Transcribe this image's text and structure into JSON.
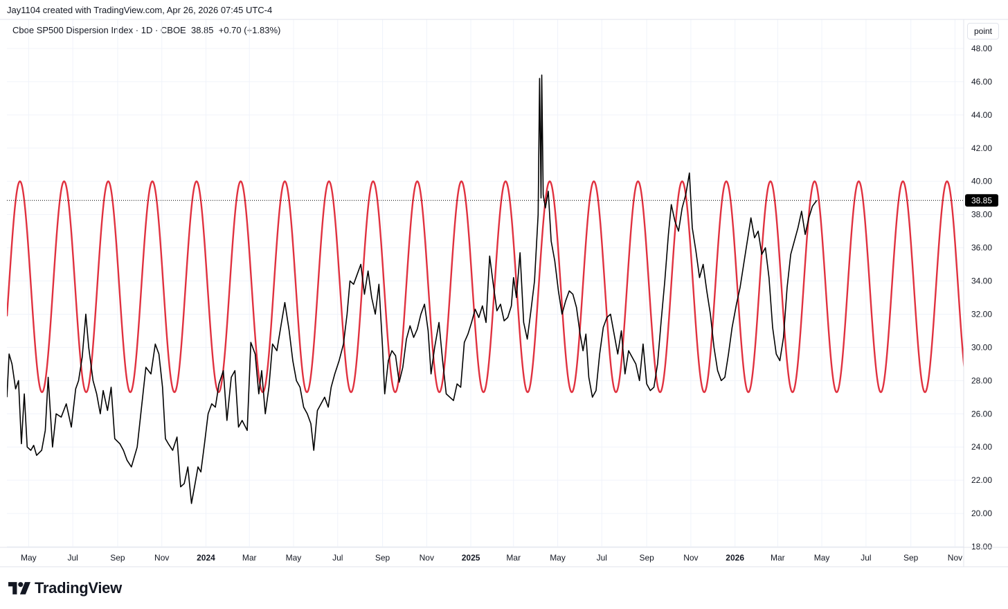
{
  "header": {
    "credit": "Jay1104 created with TradingView.com, Apr 26, 2026 07:45 UTC-4"
  },
  "legend": {
    "symbol": "Cboe SP500 Dispersion Index · 1D · CBOE",
    "last": "38.85",
    "change": "+0.70 (+1.83%)"
  },
  "price_axis": {
    "unit": "point",
    "last_price_label": "38.85"
  },
  "footer": {
    "brand": "TradingView"
  },
  "colors": {
    "price_line": "#000000",
    "cycle_line": "#e0313f",
    "last_badge_bg": "#000000",
    "grid": "#f0f3fa"
  },
  "chart_data": {
    "type": "line",
    "title": "Cboe SP500 Dispersion Index · 1D · CBOE",
    "ylabel": "point",
    "ylim": [
      18,
      48.5
    ],
    "y_ticks": [
      "18.00",
      "20.00",
      "22.00",
      "24.00",
      "26.00",
      "28.00",
      "30.00",
      "32.00",
      "34.00",
      "36.00",
      "38.00",
      "40.00",
      "42.00",
      "44.00",
      "46.00",
      "48.00"
    ],
    "xlim": [
      "2023-04-01",
      "2026-11-13"
    ],
    "x_ticks": [
      {
        "date": "2023-05-01",
        "label": "May",
        "bold": false
      },
      {
        "date": "2023-07-01",
        "label": "Jul",
        "bold": false
      },
      {
        "date": "2023-09-01",
        "label": "Sep",
        "bold": false
      },
      {
        "date": "2023-11-01",
        "label": "Nov",
        "bold": false
      },
      {
        "date": "2024-01-01",
        "label": "2024",
        "bold": true
      },
      {
        "date": "2024-03-01",
        "label": "Mar",
        "bold": false
      },
      {
        "date": "2024-05-01",
        "label": "May",
        "bold": false
      },
      {
        "date": "2024-07-01",
        "label": "Jul",
        "bold": false
      },
      {
        "date": "2024-09-01",
        "label": "Sep",
        "bold": false
      },
      {
        "date": "2024-11-01",
        "label": "Nov",
        "bold": false
      },
      {
        "date": "2025-01-01",
        "label": "2025",
        "bold": true
      },
      {
        "date": "2025-03-01",
        "label": "Mar",
        "bold": false
      },
      {
        "date": "2025-05-01",
        "label": "May",
        "bold": false
      },
      {
        "date": "2025-07-01",
        "label": "Jul",
        "bold": false
      },
      {
        "date": "2025-09-01",
        "label": "Sep",
        "bold": false
      },
      {
        "date": "2025-11-01",
        "label": "Nov",
        "bold": false
      },
      {
        "date": "2026-01-01",
        "label": "2026",
        "bold": true
      },
      {
        "date": "2026-03-01",
        "label": "Mar",
        "bold": false
      },
      {
        "date": "2026-05-01",
        "label": "May",
        "bold": false
      },
      {
        "date": "2026-07-01",
        "label": "Jul",
        "bold": false
      },
      {
        "date": "2026-09-01",
        "label": "Sep",
        "bold": false
      },
      {
        "date": "2026-11-01",
        "label": "Nov",
        "bold": false
      }
    ],
    "last_value": 38.85,
    "grid": true,
    "series": [
      {
        "values": [
          [
            "2023-04-01",
            27.0
          ],
          [
            "2023-04-04",
            29.6
          ],
          [
            "2023-04-08",
            29.0
          ],
          [
            "2023-04-13",
            27.5
          ],
          [
            "2023-04-17",
            28.0
          ],
          [
            "2023-04-21",
            24.2
          ],
          [
            "2023-04-25",
            27.2
          ],
          [
            "2023-04-29",
            24.0
          ],
          [
            "2023-05-04",
            23.8
          ],
          [
            "2023-05-08",
            24.1
          ],
          [
            "2023-05-12",
            23.5
          ],
          [
            "2023-05-19",
            23.8
          ],
          [
            "2023-05-24",
            25.0
          ],
          [
            "2023-05-28",
            28.2
          ],
          [
            "2023-06-03",
            24.0
          ],
          [
            "2023-06-08",
            26.0
          ],
          [
            "2023-06-15",
            25.8
          ],
          [
            "2023-06-22",
            26.6
          ],
          [
            "2023-06-29",
            25.2
          ],
          [
            "2023-07-05",
            27.5
          ],
          [
            "2023-07-09",
            28.0
          ],
          [
            "2023-07-14",
            29.4
          ],
          [
            "2023-07-19",
            32.0
          ],
          [
            "2023-07-23",
            30.0
          ],
          [
            "2023-07-29",
            28.0
          ],
          [
            "2023-08-03",
            27.2
          ],
          [
            "2023-08-08",
            26.0
          ],
          [
            "2023-08-12",
            27.4
          ],
          [
            "2023-08-18",
            26.2
          ],
          [
            "2023-08-23",
            27.6
          ],
          [
            "2023-08-28",
            24.5
          ],
          [
            "2023-09-04",
            24.2
          ],
          [
            "2023-09-09",
            23.8
          ],
          [
            "2023-09-14",
            23.2
          ],
          [
            "2023-09-20",
            22.8
          ],
          [
            "2023-09-28",
            24.0
          ],
          [
            "2023-10-03",
            26.0
          ],
          [
            "2023-10-10",
            28.8
          ],
          [
            "2023-10-17",
            28.4
          ],
          [
            "2023-10-23",
            30.2
          ],
          [
            "2023-10-28",
            29.6
          ],
          [
            "2023-11-02",
            27.6
          ],
          [
            "2023-11-06",
            24.5
          ],
          [
            "2023-11-10",
            24.2
          ],
          [
            "2023-11-16",
            23.8
          ],
          [
            "2023-11-22",
            24.6
          ],
          [
            "2023-11-27",
            21.6
          ],
          [
            "2023-12-02",
            21.8
          ],
          [
            "2023-12-07",
            22.8
          ],
          [
            "2023-12-12",
            20.6
          ],
          [
            "2023-12-17",
            21.8
          ],
          [
            "2023-12-21",
            22.8
          ],
          [
            "2023-12-25",
            22.5
          ],
          [
            "2023-12-30",
            24.2
          ],
          [
            "2024-01-04",
            26.0
          ],
          [
            "2024-01-09",
            26.6
          ],
          [
            "2024-01-14",
            26.4
          ],
          [
            "2024-01-19",
            27.8
          ],
          [
            "2024-01-25",
            28.6
          ],
          [
            "2024-01-30",
            25.6
          ],
          [
            "2024-02-05",
            28.2
          ],
          [
            "2024-02-10",
            28.6
          ],
          [
            "2024-02-15",
            25.2
          ],
          [
            "2024-02-20",
            25.6
          ],
          [
            "2024-02-27",
            25.0
          ],
          [
            "2024-03-03",
            30.3
          ],
          [
            "2024-03-09",
            29.6
          ],
          [
            "2024-03-14",
            27.2
          ],
          [
            "2024-03-18",
            28.6
          ],
          [
            "2024-03-23",
            26.0
          ],
          [
            "2024-03-28",
            27.6
          ],
          [
            "2024-04-02",
            30.2
          ],
          [
            "2024-04-08",
            29.8
          ],
          [
            "2024-04-14",
            31.4
          ],
          [
            "2024-04-19",
            32.7
          ],
          [
            "2024-04-25",
            31.0
          ],
          [
            "2024-04-30",
            29.2
          ],
          [
            "2024-05-05",
            28.0
          ],
          [
            "2024-05-10",
            27.6
          ],
          [
            "2024-05-15",
            26.4
          ],
          [
            "2024-05-20",
            26.0
          ],
          [
            "2024-05-25",
            25.4
          ],
          [
            "2024-05-29",
            23.8
          ],
          [
            "2024-06-03",
            26.2
          ],
          [
            "2024-06-08",
            26.6
          ],
          [
            "2024-06-13",
            27.0
          ],
          [
            "2024-06-18",
            26.4
          ],
          [
            "2024-06-22",
            27.6
          ],
          [
            "2024-06-27",
            28.4
          ],
          [
            "2024-07-03",
            29.2
          ],
          [
            "2024-07-09",
            30.2
          ],
          [
            "2024-07-14",
            32.0
          ],
          [
            "2024-07-18",
            34.0
          ],
          [
            "2024-07-23",
            33.8
          ],
          [
            "2024-07-28",
            34.4
          ],
          [
            "2024-08-02",
            35.0
          ],
          [
            "2024-08-07",
            33.2
          ],
          [
            "2024-08-12",
            34.6
          ],
          [
            "2024-08-17",
            33.0
          ],
          [
            "2024-08-22",
            32.0
          ],
          [
            "2024-08-27",
            33.8
          ],
          [
            "2024-09-01",
            30.0
          ],
          [
            "2024-09-04",
            27.2
          ],
          [
            "2024-09-09",
            29.2
          ],
          [
            "2024-09-14",
            29.8
          ],
          [
            "2024-09-19",
            29.5
          ],
          [
            "2024-09-24",
            27.9
          ],
          [
            "2024-09-29",
            28.8
          ],
          [
            "2024-10-04",
            30.5
          ],
          [
            "2024-10-09",
            31.3
          ],
          [
            "2024-10-14",
            30.6
          ],
          [
            "2024-10-19",
            31.1
          ],
          [
            "2024-10-24",
            32.0
          ],
          [
            "2024-10-29",
            32.6
          ],
          [
            "2024-11-03",
            31.0
          ],
          [
            "2024-11-07",
            28.4
          ],
          [
            "2024-11-12",
            30.0
          ],
          [
            "2024-11-18",
            31.5
          ],
          [
            "2024-11-23",
            29.2
          ],
          [
            "2024-11-28",
            27.2
          ],
          [
            "2024-12-03",
            27.0
          ],
          [
            "2024-12-08",
            26.8
          ],
          [
            "2024-12-13",
            27.8
          ],
          [
            "2024-12-18",
            27.6
          ],
          [
            "2024-12-23",
            30.3
          ],
          [
            "2024-12-28",
            30.8
          ],
          [
            "2025-01-02",
            31.5
          ],
          [
            "2025-01-07",
            32.3
          ],
          [
            "2025-01-12",
            31.8
          ],
          [
            "2025-01-17",
            32.5
          ],
          [
            "2025-01-22",
            31.5
          ],
          [
            "2025-01-27",
            35.5
          ],
          [
            "2025-02-01",
            33.8
          ],
          [
            "2025-02-06",
            32.2
          ],
          [
            "2025-02-11",
            32.6
          ],
          [
            "2025-02-16",
            31.6
          ],
          [
            "2025-02-21",
            31.8
          ],
          [
            "2025-02-26",
            32.5
          ],
          [
            "2025-03-01",
            34.2
          ],
          [
            "2025-03-05",
            33.0
          ],
          [
            "2025-03-10",
            35.7
          ],
          [
            "2025-03-15",
            31.5
          ],
          [
            "2025-03-20",
            30.5
          ],
          [
            "2025-03-25",
            32.2
          ],
          [
            "2025-03-30",
            34.0
          ],
          [
            "2025-04-04",
            38.0
          ],
          [
            "2025-04-06",
            46.2
          ],
          [
            "2025-04-08",
            39.0
          ],
          [
            "2025-04-09",
            46.4
          ],
          [
            "2025-04-11",
            39.2
          ],
          [
            "2025-04-14",
            38.4
          ],
          [
            "2025-04-18",
            39.4
          ],
          [
            "2025-04-22",
            36.4
          ],
          [
            "2025-04-27",
            35.2
          ],
          [
            "2025-05-02",
            33.4
          ],
          [
            "2025-05-07",
            32.0
          ],
          [
            "2025-05-12",
            32.8
          ],
          [
            "2025-05-17",
            33.4
          ],
          [
            "2025-05-22",
            33.2
          ],
          [
            "2025-05-27",
            32.4
          ],
          [
            "2025-06-01",
            30.8
          ],
          [
            "2025-06-05",
            29.8
          ],
          [
            "2025-06-09",
            30.8
          ],
          [
            "2025-06-13",
            28.2
          ],
          [
            "2025-06-18",
            27.0
          ],
          [
            "2025-06-23",
            27.4
          ],
          [
            "2025-06-28",
            29.6
          ],
          [
            "2025-07-03",
            31.2
          ],
          [
            "2025-07-08",
            31.8
          ],
          [
            "2025-07-13",
            32.0
          ],
          [
            "2025-07-18",
            30.8
          ],
          [
            "2025-07-23",
            29.6
          ],
          [
            "2025-07-28",
            31.0
          ],
          [
            "2025-08-02",
            28.4
          ],
          [
            "2025-08-07",
            29.8
          ],
          [
            "2025-08-12",
            29.4
          ],
          [
            "2025-08-17",
            29.0
          ],
          [
            "2025-08-22",
            28.0
          ],
          [
            "2025-08-27",
            30.2
          ],
          [
            "2025-09-01",
            27.8
          ],
          [
            "2025-09-06",
            27.4
          ],
          [
            "2025-09-11",
            27.6
          ],
          [
            "2025-09-16",
            29.0
          ],
          [
            "2025-09-21",
            31.6
          ],
          [
            "2025-09-26",
            34.0
          ],
          [
            "2025-10-01",
            36.8
          ],
          [
            "2025-10-05",
            38.6
          ],
          [
            "2025-10-10",
            37.6
          ],
          [
            "2025-10-15",
            37.0
          ],
          [
            "2025-10-20",
            38.4
          ],
          [
            "2025-10-25",
            39.2
          ],
          [
            "2025-10-30",
            40.5
          ],
          [
            "2025-11-03",
            37.2
          ],
          [
            "2025-11-08",
            35.8
          ],
          [
            "2025-11-13",
            34.2
          ],
          [
            "2025-11-18",
            35.0
          ],
          [
            "2025-11-23",
            33.4
          ],
          [
            "2025-11-28",
            32.0
          ],
          [
            "2025-12-03",
            30.0
          ],
          [
            "2025-12-08",
            28.6
          ],
          [
            "2025-12-13",
            28.0
          ],
          [
            "2025-12-18",
            28.2
          ],
          [
            "2025-12-23",
            29.6
          ],
          [
            "2025-12-28",
            31.2
          ],
          [
            "2026-01-03",
            32.6
          ],
          [
            "2026-01-08",
            33.6
          ],
          [
            "2026-01-13",
            35.0
          ],
          [
            "2026-01-18",
            36.4
          ],
          [
            "2026-01-23",
            37.8
          ],
          [
            "2026-01-28",
            36.6
          ],
          [
            "2026-02-02",
            37.0
          ],
          [
            "2026-02-07",
            35.6
          ],
          [
            "2026-02-12",
            36.0
          ],
          [
            "2026-02-17",
            34.2
          ],
          [
            "2026-02-22",
            31.2
          ],
          [
            "2026-02-27",
            29.6
          ],
          [
            "2026-03-04",
            29.2
          ],
          [
            "2026-03-09",
            30.6
          ],
          [
            "2026-03-14",
            33.6
          ],
          [
            "2026-03-19",
            35.6
          ],
          [
            "2026-03-24",
            36.4
          ],
          [
            "2026-03-29",
            37.2
          ],
          [
            "2026-04-03",
            38.2
          ],
          [
            "2026-04-08",
            36.8
          ],
          [
            "2026-04-13",
            37.8
          ],
          [
            "2026-04-18",
            38.5
          ],
          [
            "2026-04-24",
            38.85
          ]
        ]
      },
      {
        "type": "sine",
        "min": 27.3,
        "max": 40.0,
        "first_peak": "2023-04-19",
        "period_days": 61,
        "end": "2026-11-15",
        "peaks": [
          "2023-04-19",
          "2023-06-19",
          "2023-08-19",
          "2023-10-19",
          "2023-12-19",
          "2024-02-18",
          "2024-04-19",
          "2024-06-19",
          "2024-08-19",
          "2024-10-19",
          "2024-12-19",
          "2025-02-18",
          "2025-04-20",
          "2025-06-20",
          "2025-08-20",
          "2025-10-20",
          "2025-12-20",
          "2026-02-19",
          "2026-04-21",
          "2026-06-21",
          "2026-08-21",
          "2026-10-21"
        ]
      }
    ]
  }
}
